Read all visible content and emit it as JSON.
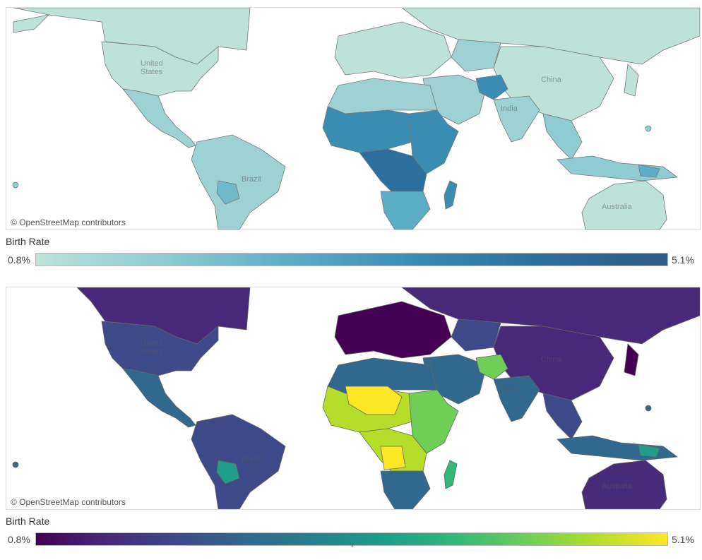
{
  "maps": [
    {
      "id": "top",
      "palette": "teal-blue sequential",
      "attribution": "© OpenStreetMap contributors",
      "country_labels": {
        "us": "United\nStates",
        "brazil": "Brazil",
        "china": "China",
        "india": "India",
        "australia": "Australia"
      },
      "legend": {
        "title": "Birth Rate",
        "min": "0.8%",
        "max": "5.1%"
      },
      "colors": {
        "low": "#bde2d9",
        "mid": "#8fcbd2",
        "mid2": "#5cadc6",
        "high": "#3a8cb3",
        "max": "#335a86"
      }
    },
    {
      "id": "bottom",
      "palette": "viridis",
      "attribution": "© OpenStreetMap contributors",
      "country_labels": {
        "us": "United\nStates",
        "brazil": "Brazil",
        "china": "China",
        "india": "India",
        "australia": "Australia"
      },
      "legend": {
        "title": "Birth Rate",
        "min": "0.8%",
        "max": "5.1%"
      },
      "colors": {
        "low": "#472b7a",
        "mid": "#3f4a8a",
        "mid2": "#2d708e",
        "high": "#22a884",
        "max": "#fde725"
      }
    }
  ]
}
